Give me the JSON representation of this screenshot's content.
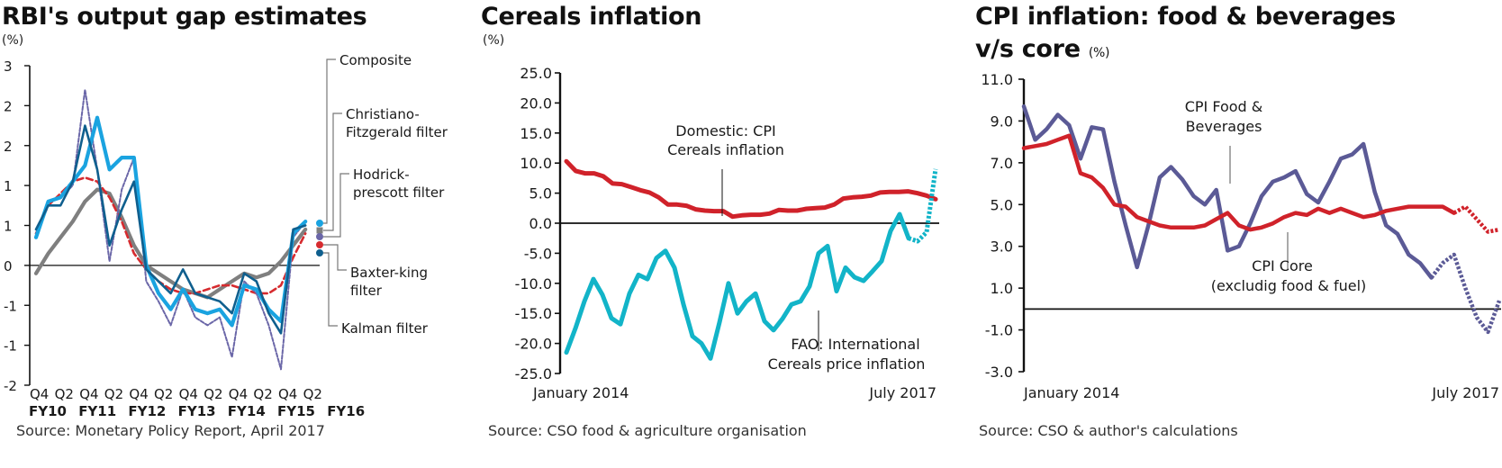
{
  "charts": {
    "left": {
      "title": "RBI's output gap estimates",
      "unit": "(%)",
      "source": "Source: Monetary Policy Report, April 2017"
    },
    "middle": {
      "title": "Cereals inflation",
      "unit": "(%)",
      "source": "Source: CSO food & agriculture organisation"
    },
    "right": {
      "title_line1": "CPI inflation: food & beverages",
      "title_line2": "v/s core",
      "unit": "(%)",
      "source": "Source: CSO & author's calculations"
    }
  },
  "chart_data": [
    {
      "type": "line",
      "title": "RBI's output gap estimates",
      "ylabel": "(%)",
      "ylim": [
        -1.5,
        2.5
      ],
      "yticks": [
        2.5,
        2.0,
        1.5,
        1.0,
        0.5,
        0,
        -0.5,
        -1.0,
        -1.5
      ],
      "ytick_labels": [
        "3",
        "2",
        "2",
        "1",
        "1",
        "0",
        "-1",
        "-1",
        "-2"
      ],
      "xtick_labels_quarter": [
        "Q4",
        "Q2",
        "Q4",
        "Q2",
        "Q4",
        "Q2",
        "Q4",
        "Q2",
        "Q4",
        "Q2",
        "Q4",
        "Q2"
      ],
      "xtick_labels_year": [
        "FY10",
        "FY11",
        "FY12",
        "FY13",
        "FY14",
        "FY15",
        "FY16"
      ],
      "x": [
        "Q4 FY10",
        "Q1 FY11",
        "Q2 FY11",
        "Q3 FY11",
        "Q4 FY11",
        "Q1 FY12",
        "Q2 FY12",
        "Q3 FY12",
        "Q4 FY12",
        "Q1 FY13",
        "Q2 FY13",
        "Q3 FY13",
        "Q4 FY13",
        "Q1 FY14",
        "Q2 FY14",
        "Q3 FY14",
        "Q4 FY14",
        "Q1 FY15",
        "Q2 FY15",
        "Q3 FY15",
        "Q4 FY15",
        "Q1 FY16",
        "Q2 FY16",
        "Q3 FY16"
      ],
      "legend_placement": "right",
      "series": [
        {
          "name": "Composite",
          "color": "#1aa3e0",
          "style": "solid-thick",
          "marker": "circle",
          "values": [
            0.35,
            0.8,
            0.85,
            1.05,
            1.25,
            1.85,
            1.2,
            1.35,
            1.35,
            0.0,
            -0.35,
            -0.55,
            -0.3,
            -0.55,
            -0.6,
            -0.55,
            -0.75,
            -0.25,
            -0.3,
            -0.55,
            -0.7,
            0.4,
            0.55,
            null
          ]
        },
        {
          "name": "Christiano-Fitzgerald filter",
          "color": "#7f7f7f",
          "style": "solid-thick",
          "marker": "square",
          "values": [
            -0.1,
            0.15,
            0.35,
            0.55,
            0.8,
            0.95,
            0.9,
            0.6,
            0.25,
            0.0,
            -0.1,
            -0.2,
            -0.3,
            -0.35,
            -0.4,
            -0.3,
            -0.2,
            -0.1,
            -0.15,
            -0.1,
            0.05,
            0.25,
            0.45,
            null
          ]
        },
        {
          "name": "Hodrick-prescott filter",
          "color": "#6b67a8",
          "style": "dashed-thin",
          "marker": "circle",
          "values": [
            0.4,
            0.8,
            0.85,
            1.0,
            2.2,
            1.2,
            0.05,
            0.95,
            1.35,
            -0.2,
            -0.45,
            -0.75,
            -0.3,
            -0.65,
            -0.75,
            -0.65,
            -1.15,
            -0.2,
            -0.35,
            -0.75,
            -1.3,
            0.35,
            0.55,
            null
          ]
        },
        {
          "name": "Baxter-king filter",
          "color": "#d62b2f",
          "style": "dashed-thick",
          "marker": "circle",
          "values": [
            0.4,
            0.75,
            0.9,
            1.05,
            1.1,
            1.05,
            0.85,
            0.55,
            0.15,
            -0.05,
            -0.2,
            -0.3,
            -0.35,
            -0.35,
            -0.3,
            -0.25,
            -0.25,
            -0.3,
            -0.35,
            -0.35,
            -0.25,
            0.1,
            0.4,
            null
          ]
        },
        {
          "name": "Kalman filter",
          "color": "#0f5f8e",
          "style": "solid-thin",
          "marker": "circle",
          "values": [
            0.45,
            0.75,
            0.75,
            1.05,
            1.75,
            1.2,
            0.25,
            0.7,
            1.05,
            -0.05,
            -0.2,
            -0.35,
            -0.05,
            -0.35,
            -0.4,
            -0.45,
            -0.6,
            -0.1,
            -0.2,
            -0.6,
            -0.85,
            0.45,
            0.5,
            null
          ]
        }
      ]
    },
    {
      "type": "line",
      "title": "Cereals inflation",
      "ylabel": "(%)",
      "ylim": [
        -25.0,
        25.0
      ],
      "yticks": [
        "25.0",
        "20.0",
        "15.0",
        "10.0",
        "5.0",
        "0.0",
        "-5.0",
        "-10.0",
        "-15.0",
        "-20.0",
        "-25.0"
      ],
      "xtick_labels": [
        "January 2014",
        "July 2017"
      ],
      "x_range": [
        "Jan 2014",
        "Jul 2017"
      ],
      "annotations": [
        "Domestic: CPI Cereals inflation",
        "FAO: International Cereals price inflation"
      ],
      "series": [
        {
          "name": "Domestic: CPI Cereals inflation",
          "color": "#d0222a",
          "values": [
            10.3,
            8.7,
            8.3,
            8.3,
            7.8,
            6.6,
            6.5,
            6.0,
            5.5,
            5.1,
            4.3,
            3.1,
            3.1,
            2.9,
            2.3,
            2.1,
            2.0,
            2.0,
            1.1,
            1.3,
            1.4,
            1.4,
            1.6,
            2.2,
            2.1,
            2.1,
            2.4,
            2.5,
            2.6,
            3.1,
            4.1,
            4.3,
            4.4,
            4.6,
            5.1,
            5.2,
            5.2,
            5.3,
            5.0,
            4.6,
            4.0
          ]
        },
        {
          "name": "FAO: International Cereals price inflation",
          "color": "#12b4c8",
          "dashed_tail_from_index": 38,
          "values": [
            -21.5,
            -17.5,
            -13.0,
            -9.3,
            -11.9,
            -15.8,
            -16.8,
            -11.7,
            -8.6,
            -9.3,
            -5.8,
            -4.6,
            -7.4,
            -13.5,
            -18.8,
            -20.0,
            -22.5,
            -16.5,
            -10.0,
            -15.0,
            -13.0,
            -11.7,
            -16.3,
            -17.8,
            -15.9,
            -13.5,
            -13.0,
            -10.5,
            -5.0,
            -3.8,
            -11.3,
            -7.4,
            -9.0,
            -9.6,
            -8.0,
            -6.3,
            -1.3,
            1.5,
            -2.5,
            -3.0,
            -1.5,
            9.0
          ]
        }
      ]
    },
    {
      "type": "line",
      "title": "CPI inflation: food & beverages v/s core",
      "ylabel": "(%)",
      "ylim": [
        -3.0,
        11.0
      ],
      "yticks": [
        "11.0",
        "9.0",
        "7.0",
        "5.0",
        "3.0",
        "1.0",
        "-1.0",
        "-3.0"
      ],
      "xtick_labels": [
        "January 2014",
        "July 2017"
      ],
      "x_range": [
        "Jan 2014",
        "Jul 2017"
      ],
      "annotations": [
        "CPI Food & Beverages",
        "CPI Core (excludig food & fuel)"
      ],
      "series": [
        {
          "name": "CPI Food & Beverages",
          "color": "#5b5a96",
          "dashed_tail_from_index": 36,
          "values": [
            9.7,
            8.1,
            8.6,
            9.3,
            8.8,
            7.2,
            8.7,
            8.6,
            6.1,
            4.0,
            2.0,
            4.0,
            6.3,
            6.8,
            6.2,
            5.4,
            5.0,
            5.7,
            2.8,
            3.0,
            4.1,
            5.4,
            6.1,
            6.3,
            6.6,
            5.5,
            5.1,
            6.1,
            7.2,
            7.4,
            7.9,
            5.6,
            4.0,
            3.6,
            2.6,
            2.2,
            1.5,
            2.2,
            2.6,
            1.0,
            -0.4,
            -1.1,
            0.4
          ]
        },
        {
          "name": "CPI Core (excludig food & fuel)",
          "color": "#d0222a",
          "dashed_tail_from_index": 38,
          "values": [
            7.7,
            7.8,
            7.9,
            8.1,
            8.3,
            6.5,
            6.3,
            5.8,
            5.0,
            4.9,
            4.4,
            4.2,
            4.0,
            3.9,
            3.9,
            3.9,
            4.0,
            4.3,
            4.6,
            4.0,
            3.8,
            3.9,
            4.1,
            4.4,
            4.6,
            4.5,
            4.8,
            4.6,
            4.8,
            4.6,
            4.4,
            4.5,
            4.7,
            4.8,
            4.9,
            4.9,
            4.9,
            4.9,
            4.6,
            4.9,
            4.3,
            3.7,
            3.8
          ]
        }
      ]
    }
  ]
}
